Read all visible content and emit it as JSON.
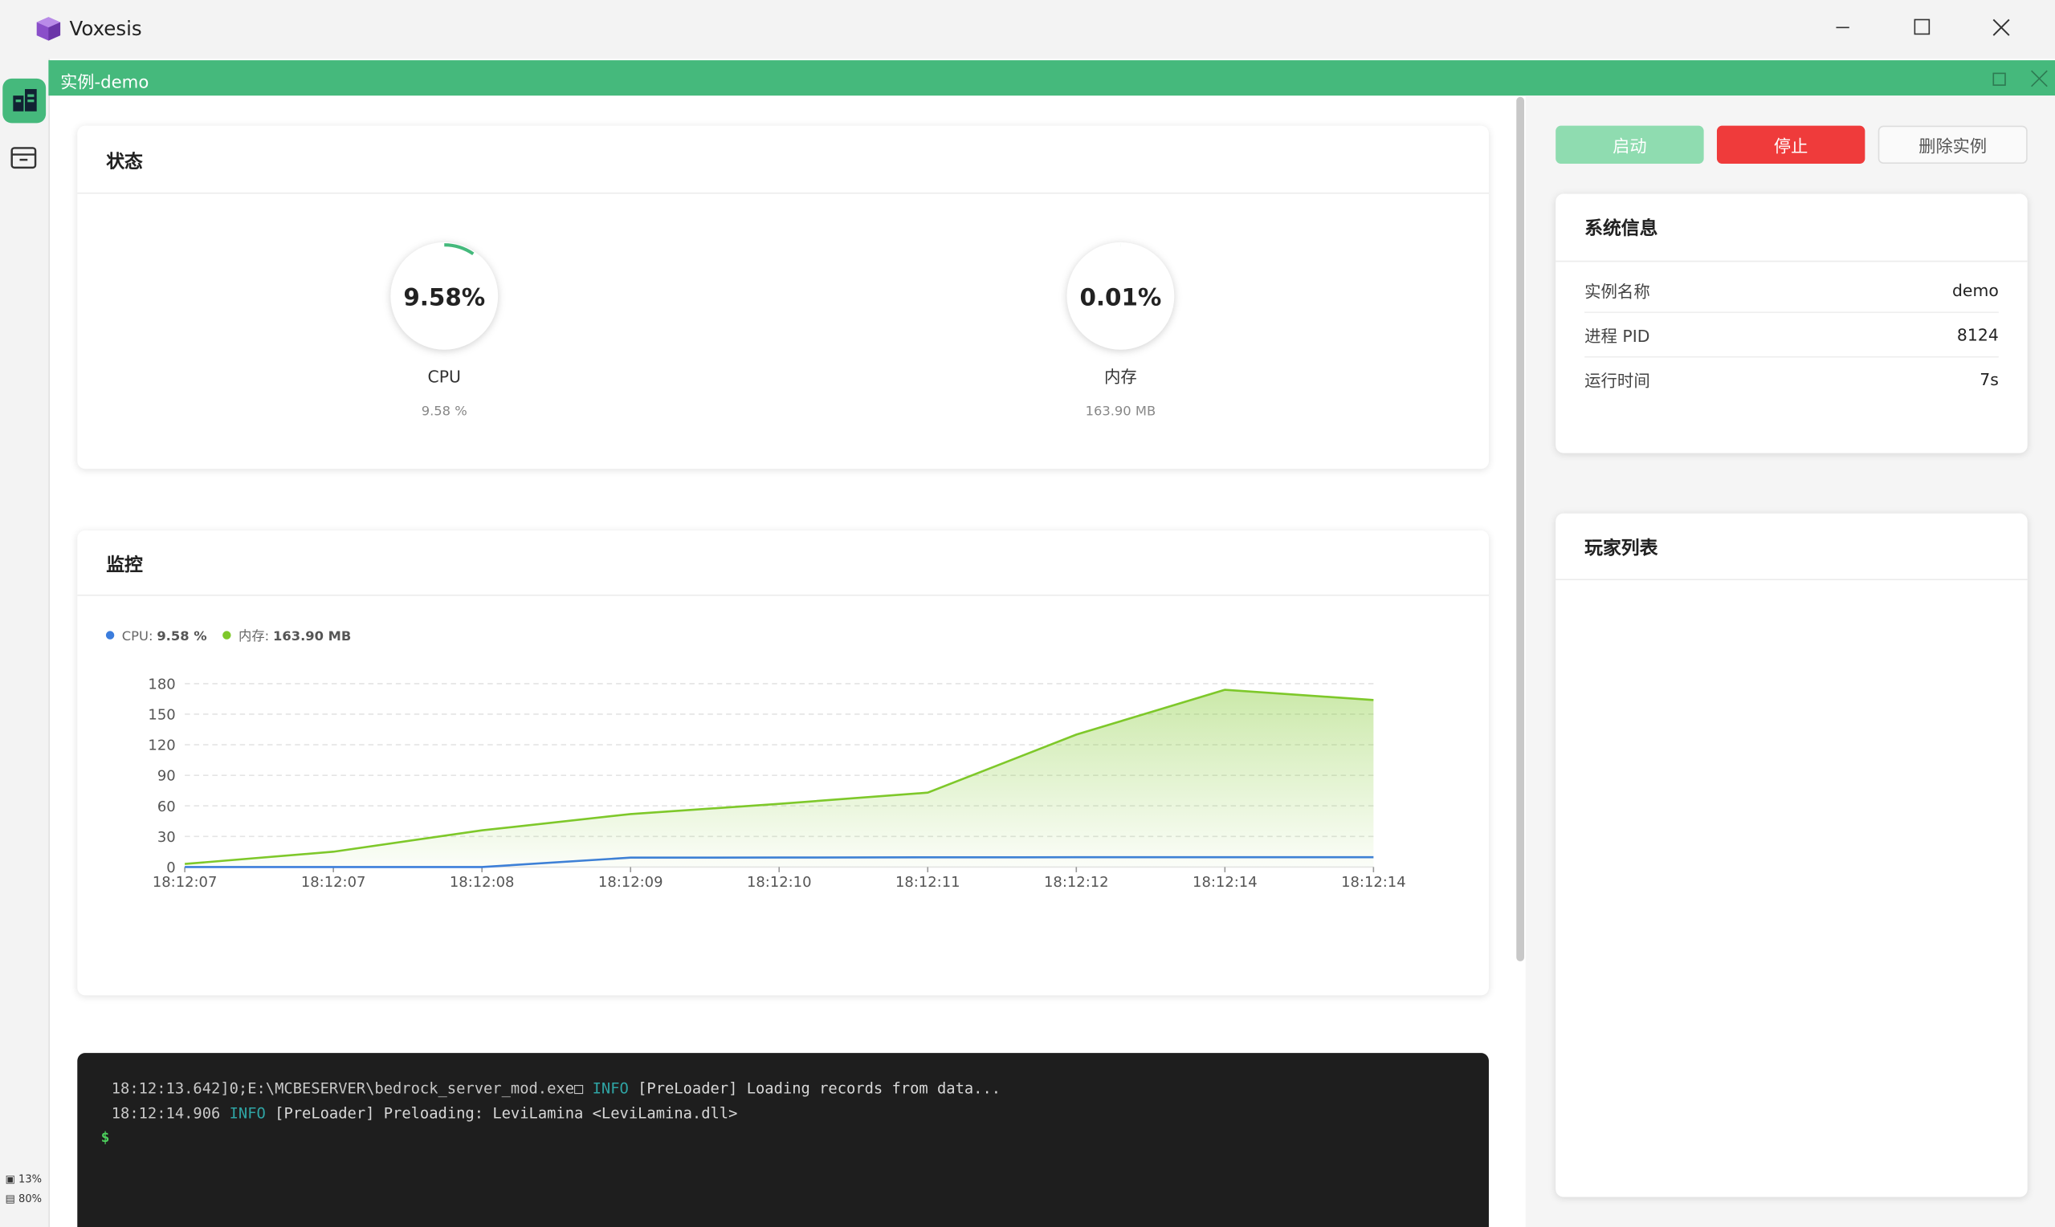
{
  "app": {
    "title": "Voxesis"
  },
  "tab": {
    "title": "实例-demo"
  },
  "status": {
    "title": "状态",
    "gauges": [
      {
        "value": 9.58,
        "label": "9.58%",
        "name": "CPU",
        "detail": "9.58 %"
      },
      {
        "value": 0.01,
        "label": "0.01%",
        "name": "内存",
        "detail": "163.90 MB"
      }
    ]
  },
  "chart_data": {
    "type": "line",
    "title": "监控",
    "categories": [
      "18:12:07",
      "18:12:07",
      "18:12:08",
      "18:12:09",
      "18:12:10",
      "18:12:11",
      "18:12:12",
      "18:12:14",
      "18:12:14"
    ],
    "series": [
      {
        "name": "CPU:",
        "legend_value": "9.58 %",
        "color": "#3b7ddd",
        "area": false,
        "values": [
          0,
          0,
          0,
          9.2,
          9.3,
          9.5,
          9.6,
          9.6,
          9.58
        ]
      },
      {
        "name": "内存:",
        "legend_value": "163.90 MB",
        "color": "#7ec82a",
        "area": true,
        "values": [
          3,
          15,
          36,
          52,
          62,
          73,
          130,
          174,
          163.9
        ]
      }
    ],
    "ylim": [
      0,
      180
    ],
    "yticks": [
      0,
      30,
      60,
      90,
      120,
      150,
      180
    ],
    "grid": true
  },
  "actions": {
    "start": "启动",
    "stop": "停止",
    "delete": "删除实例"
  },
  "system_info": {
    "title": "系统信息",
    "rows": [
      [
        "实例名称",
        "demo"
      ],
      [
        "进程 PID",
        "8124"
      ],
      [
        "运行时间",
        "7s"
      ]
    ]
  },
  "players": {
    "title": "玩家列表"
  },
  "console": {
    "lines": [
      [
        {
          "text": "18:12:13.642]0;E:\\MCBESERVER\\bedrock_server_mod.exe□ ",
          "kind": "time"
        },
        {
          "text": "INFO",
          "kind": "level"
        },
        {
          "text": " [PreLoader] Loading records from data...",
          "kind": "msg"
        }
      ],
      [
        {
          "text": "18:12:14.906 ",
          "kind": "time"
        },
        {
          "text": "INFO",
          "kind": "level"
        },
        {
          "text": " [PreLoader] Preloading: LeviLamina <LeviLamina.dll>",
          "kind": "msg"
        }
      ]
    ],
    "prompt": "$"
  },
  "usage": {
    "cpu": "13%",
    "memory": "80%"
  }
}
